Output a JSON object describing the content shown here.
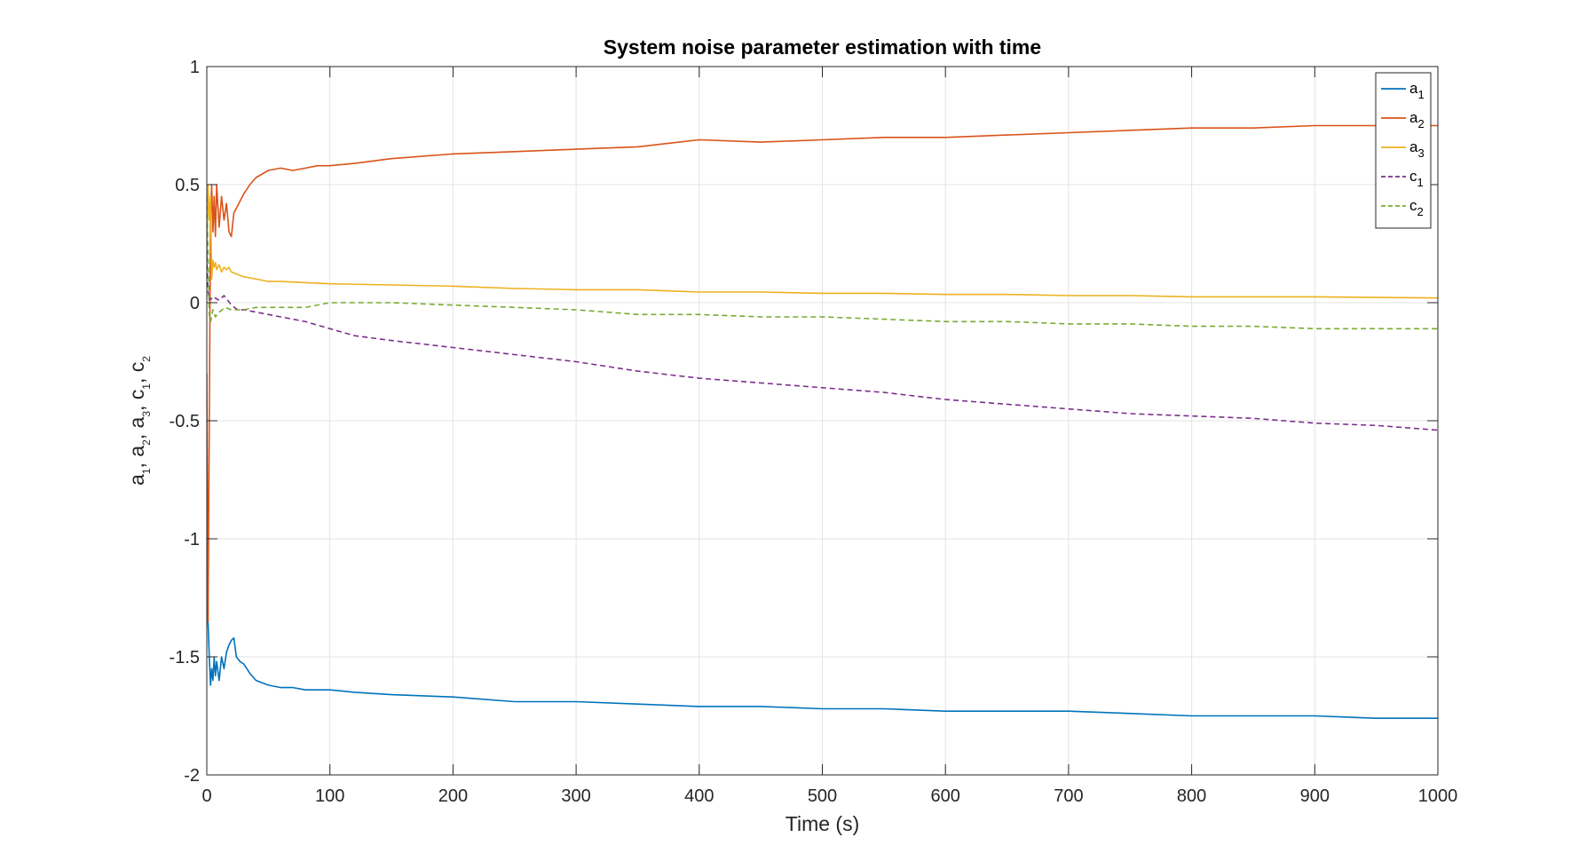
{
  "chart_data": {
    "type": "line",
    "title": "System noise parameter estimation with time",
    "xlabel": "Time (s)",
    "ylabel": {
      "parts": [
        [
          "a",
          "1"
        ],
        [
          "a",
          "2"
        ],
        [
          "a",
          "3"
        ],
        [
          "c",
          "1"
        ],
        [
          "c",
          "2"
        ]
      ],
      "separator": ", "
    },
    "xlim": [
      0,
      1000
    ],
    "ylim": [
      -2,
      1
    ],
    "xticks": [
      0,
      100,
      200,
      300,
      400,
      500,
      600,
      700,
      800,
      900,
      1000
    ],
    "yticks": [
      -2,
      -1.5,
      -1,
      -0.5,
      0,
      0.5,
      1
    ],
    "grid": true,
    "legend_position": "top-right",
    "series": [
      {
        "name": "a1",
        "base": "a",
        "subscript": "1",
        "color": "#0072BD",
        "style": "solid",
        "x": [
          0,
          1,
          2,
          3,
          4,
          5,
          6,
          7,
          8,
          10,
          12,
          14,
          16,
          18,
          20,
          22,
          24,
          27,
          30,
          35,
          40,
          50,
          60,
          70,
          80,
          90,
          100,
          120,
          150,
          200,
          250,
          300,
          350,
          400,
          450,
          500,
          550,
          600,
          650,
          700,
          750,
          800,
          850,
          900,
          950,
          1000
        ],
        "y": [
          -0.6,
          -1.35,
          -1.5,
          -1.62,
          -1.55,
          -1.6,
          -1.5,
          -1.58,
          -1.52,
          -1.6,
          -1.5,
          -1.55,
          -1.48,
          -1.45,
          -1.43,
          -1.42,
          -1.5,
          -1.52,
          -1.53,
          -1.57,
          -1.6,
          -1.62,
          -1.63,
          -1.63,
          -1.64,
          -1.64,
          -1.64,
          -1.65,
          -1.66,
          -1.67,
          -1.69,
          -1.69,
          -1.7,
          -1.71,
          -1.71,
          -1.72,
          -1.72,
          -1.73,
          -1.73,
          -1.73,
          -1.74,
          -1.75,
          -1.75,
          -1.75,
          -1.76,
          -1.76
        ]
      },
      {
        "name": "a2",
        "base": "a",
        "subscript": "2",
        "color": "#D95319",
        "style": "solid",
        "x": [
          0,
          1,
          2,
          3,
          4,
          5,
          6,
          7,
          8,
          10,
          12,
          14,
          16,
          18,
          20,
          22,
          24,
          27,
          30,
          35,
          40,
          50,
          60,
          70,
          80,
          90,
          100,
          120,
          150,
          200,
          250,
          300,
          350,
          400,
          450,
          500,
          550,
          600,
          650,
          700,
          750,
          800,
          850,
          900,
          950,
          1000
        ],
        "y": [
          -0.3,
          -1.35,
          -0.5,
          0.35,
          0.5,
          0.3,
          0.45,
          0.28,
          0.5,
          0.32,
          0.45,
          0.35,
          0.42,
          0.3,
          0.28,
          0.38,
          0.4,
          0.43,
          0.46,
          0.5,
          0.53,
          0.56,
          0.57,
          0.56,
          0.57,
          0.58,
          0.58,
          0.59,
          0.61,
          0.63,
          0.64,
          0.65,
          0.66,
          0.69,
          0.68,
          0.69,
          0.7,
          0.7,
          0.71,
          0.72,
          0.73,
          0.74,
          0.74,
          0.75,
          0.75,
          0.75
        ]
      },
      {
        "name": "a3",
        "base": "a",
        "subscript": "3",
        "color": "#EDB120",
        "style": "solid",
        "x": [
          0,
          1,
          2,
          3,
          4,
          5,
          6,
          7,
          8,
          10,
          12,
          14,
          16,
          18,
          20,
          25,
          30,
          40,
          50,
          60,
          80,
          100,
          150,
          200,
          250,
          300,
          350,
          400,
          450,
          500,
          550,
          600,
          650,
          700,
          750,
          800,
          850,
          900,
          950,
          1000
        ],
        "y": [
          0.2,
          0.5,
          0.35,
          0.45,
          0.1,
          0.18,
          0.15,
          0.17,
          0.14,
          0.16,
          0.13,
          0.15,
          0.14,
          0.15,
          0.13,
          0.12,
          0.11,
          0.1,
          0.09,
          0.09,
          0.085,
          0.08,
          0.075,
          0.07,
          0.06,
          0.055,
          0.055,
          0.045,
          0.045,
          0.04,
          0.04,
          0.035,
          0.035,
          0.03,
          0.03,
          0.025,
          0.025,
          0.025,
          0.022,
          0.02
        ]
      },
      {
        "name": "c1",
        "base": "c",
        "subscript": "1",
        "color": "#7E2F8E",
        "style": "dashed",
        "x": [
          0,
          1,
          2,
          3,
          5,
          7,
          10,
          12,
          14,
          17,
          20,
          25,
          30,
          40,
          50,
          60,
          70,
          80,
          100,
          120,
          150,
          200,
          250,
          300,
          350,
          400,
          450,
          500,
          550,
          600,
          650,
          700,
          750,
          800,
          850,
          900,
          950,
          1000
        ],
        "y": [
          0.2,
          0.05,
          0.01,
          0.02,
          0.01,
          0.02,
          0.01,
          0.02,
          0.03,
          0.01,
          -0.01,
          -0.03,
          -0.03,
          -0.04,
          -0.05,
          -0.06,
          -0.07,
          -0.08,
          -0.11,
          -0.14,
          -0.16,
          -0.19,
          -0.22,
          -0.25,
          -0.29,
          -0.32,
          -0.34,
          -0.36,
          -0.38,
          -0.41,
          -0.43,
          -0.45,
          -0.47,
          -0.48,
          -0.49,
          -0.51,
          -0.52,
          -0.54
        ]
      },
      {
        "name": "c2",
        "base": "c",
        "subscript": "2",
        "color": "#77AC30",
        "style": "dashed",
        "x": [
          0,
          1,
          2,
          3,
          5,
          7,
          10,
          15,
          20,
          30,
          40,
          60,
          80,
          100,
          120,
          150,
          200,
          250,
          300,
          350,
          400,
          450,
          500,
          550,
          600,
          650,
          700,
          750,
          800,
          850,
          900,
          950,
          1000
        ],
        "y": [
          0.45,
          0.2,
          -0.05,
          -0.08,
          -0.03,
          -0.06,
          -0.04,
          -0.02,
          -0.03,
          -0.03,
          -0.02,
          -0.02,
          -0.02,
          0.0,
          0.0,
          0.0,
          -0.01,
          -0.02,
          -0.03,
          -0.05,
          -0.05,
          -0.06,
          -0.06,
          -0.07,
          -0.08,
          -0.08,
          -0.09,
          -0.09,
          -0.1,
          -0.1,
          -0.11,
          -0.11,
          -0.11
        ]
      }
    ]
  }
}
